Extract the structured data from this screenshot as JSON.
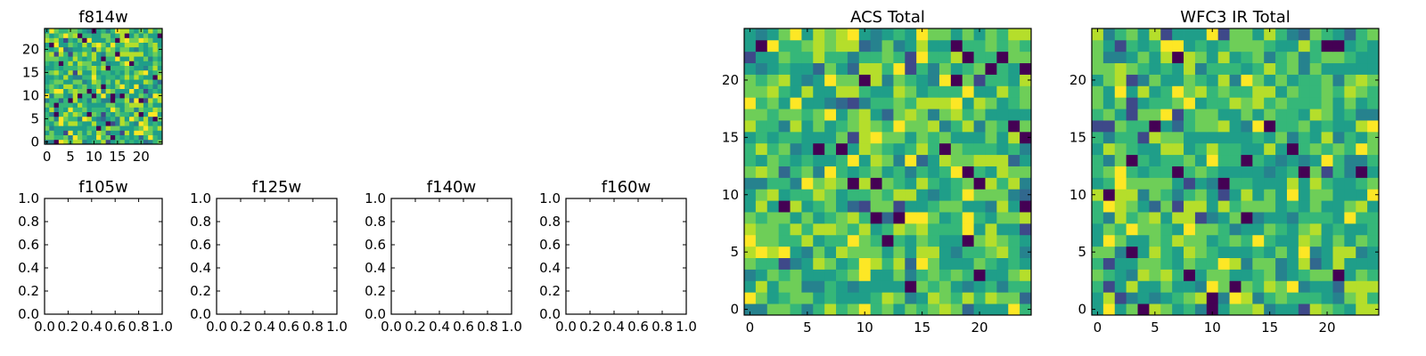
{
  "chart_data": [
    {
      "type": "heatmap",
      "title": "f814w",
      "grid_size": 25,
      "xlim": [
        -0.5,
        24.5
      ],
      "ylim": [
        -0.5,
        24.5
      ],
      "xticks": [
        0,
        5,
        10,
        15,
        20
      ],
      "yticks": [
        0,
        5,
        10,
        15,
        20
      ],
      "xtick_labels": [
        "0",
        "5",
        "10",
        "15",
        "20"
      ],
      "ytick_labels": [
        "0",
        "5",
        "10",
        "15",
        "20"
      ],
      "colormap": "viridis",
      "seed": 814
    },
    {
      "type": "heatmap",
      "title": "f105w",
      "empty": true,
      "xlim": [
        0,
        1
      ],
      "ylim": [
        0,
        1
      ],
      "xtick_labels": [
        "0.0",
        "0.2",
        "0.4",
        "0.6",
        "0.8",
        "1.0"
      ],
      "ytick_labels": [
        "0.0",
        "0.2",
        "0.4",
        "0.6",
        "0.8",
        "1.0"
      ]
    },
    {
      "type": "heatmap",
      "title": "f125w",
      "empty": true,
      "xlim": [
        0,
        1
      ],
      "ylim": [
        0,
        1
      ],
      "xtick_labels": [
        "0.0",
        "0.2",
        "0.4",
        "0.6",
        "0.8",
        "1.0"
      ],
      "ytick_labels": [
        "0.0",
        "0.2",
        "0.4",
        "0.6",
        "0.8",
        "1.0"
      ]
    },
    {
      "type": "heatmap",
      "title": "f140w",
      "empty": true,
      "xlim": [
        0,
        1
      ],
      "ylim": [
        0,
        1
      ],
      "xtick_labels": [
        "0.0",
        "0.2",
        "0.4",
        "0.6",
        "0.8",
        "1.0"
      ],
      "ytick_labels": [
        "0.0",
        "0.2",
        "0.4",
        "0.6",
        "0.8",
        "1.0"
      ]
    },
    {
      "type": "heatmap",
      "title": "f160w",
      "empty": true,
      "xlim": [
        0,
        1
      ],
      "ylim": [
        0,
        1
      ],
      "xtick_labels": [
        "0.0",
        "0.2",
        "0.4",
        "0.6",
        "0.8",
        "1.0"
      ],
      "ytick_labels": [
        "0.0",
        "0.2",
        "0.4",
        "0.6",
        "0.8",
        "1.0"
      ]
    },
    {
      "type": "heatmap",
      "title": "ACS Total",
      "grid_size": 25,
      "xlim": [
        -0.5,
        24.5
      ],
      "ylim": [
        -0.5,
        24.5
      ],
      "xticks": [
        0,
        5,
        10,
        15,
        20
      ],
      "yticks": [
        0,
        5,
        10,
        15,
        20
      ],
      "xtick_labels": [
        "0",
        "5",
        "10",
        "15",
        "20"
      ],
      "ytick_labels": [
        "0",
        "5",
        "10",
        "15",
        "20"
      ],
      "colormap": "viridis",
      "seed": 1001
    },
    {
      "type": "heatmap",
      "title": "WFC3 IR Total",
      "grid_size": 25,
      "xlim": [
        -0.5,
        24.5
      ],
      "ylim": [
        -0.5,
        24.5
      ],
      "xticks": [
        0,
        5,
        10,
        15,
        20
      ],
      "yticks": [
        0,
        5,
        10,
        15,
        20
      ],
      "xtick_labels": [
        "0",
        "5",
        "10",
        "15",
        "20"
      ],
      "ytick_labels": [
        "0",
        "5",
        "10",
        "15",
        "20"
      ],
      "colormap": "viridis",
      "seed": 3003
    }
  ]
}
